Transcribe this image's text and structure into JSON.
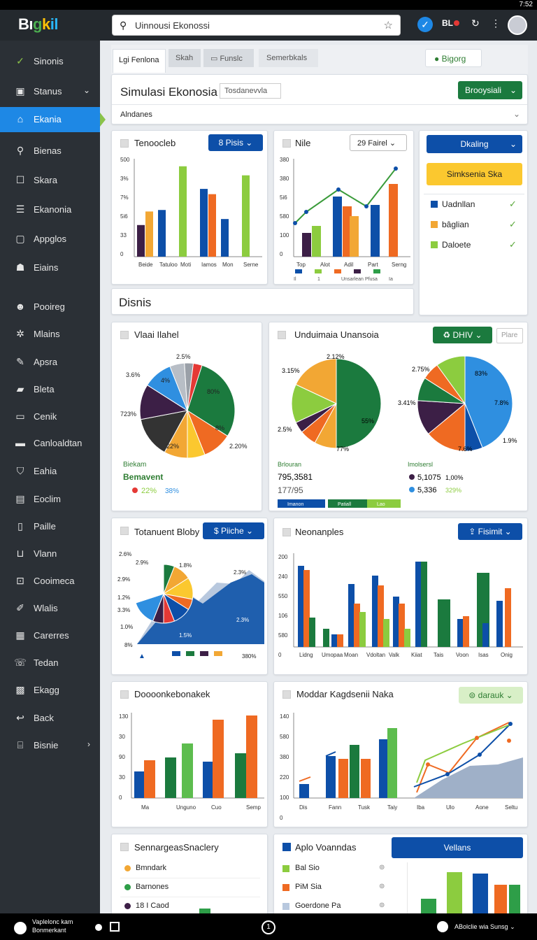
{
  "statusbar": {
    "time": "7:52"
  },
  "app": {
    "logo_parts": [
      "Bı",
      "g",
      "k",
      "il"
    ]
  },
  "search": {
    "value": "Uinnousi Ekonossi"
  },
  "topbar": {
    "badge": "BL"
  },
  "sidebar": {
    "items": [
      {
        "label": "Sinonis",
        "icon": "check-icon"
      },
      {
        "label": "Stanus",
        "icon": "box-icon",
        "chev": "⌄"
      },
      {
        "label": "Ekania",
        "icon": "home-icon"
      },
      {
        "label": "Bienas",
        "icon": "search-icon"
      },
      {
        "label": "Skara",
        "icon": "square-icon"
      },
      {
        "label": "Ekanonia",
        "icon": "list-icon"
      },
      {
        "label": "Appglos",
        "icon": "app-icon"
      },
      {
        "label": "Eiains",
        "icon": "users-icon"
      },
      {
        "label": "Pooireg",
        "icon": "user-icon"
      },
      {
        "label": "Mlains",
        "icon": "gear-icon"
      },
      {
        "label": "Apsra",
        "icon": "pen-icon"
      },
      {
        "label": "Bleta",
        "icon": "folder-icon"
      },
      {
        "label": "Cenik",
        "icon": "monitor-icon"
      },
      {
        "label": "Canloaldtan",
        "icon": "card-icon"
      },
      {
        "label": "Eahia",
        "icon": "shield-icon"
      },
      {
        "label": "Eoclim",
        "icon": "doc-icon"
      },
      {
        "label": "Paille",
        "icon": "page-icon"
      },
      {
        "label": "Vlann",
        "icon": "inbox-icon"
      },
      {
        "label": "Cooimeca",
        "icon": "share-icon"
      },
      {
        "label": "Wlalis",
        "icon": "wrench-icon"
      },
      {
        "label": "Carerres",
        "icon": "table-icon"
      },
      {
        "label": "Tedan",
        "icon": "phone-icon"
      },
      {
        "label": "Ekagg",
        "icon": "save-icon"
      },
      {
        "label": "Back",
        "icon": "back-icon"
      },
      {
        "label": "Bisnie",
        "icon": "briefcase-icon",
        "chev": "›"
      }
    ]
  },
  "tabs": [
    "Lgi Fenlona",
    "Skah",
    "Funslc",
    "Semerbkals"
  ],
  "top_chip": "Bigorg",
  "header": {
    "title": "Simulasi Ekonosia",
    "input_value": "Tosdanevvla",
    "dropdown": "Alndanes",
    "green_button": "Brooysiali"
  },
  "section_title": "Disnis",
  "charts": [
    {
      "title": "Tenoocleb",
      "button": "8 Pisis",
      "type": "bar",
      "chart_data": {
        "type": "bar",
        "categories": [
          "Beide",
          "Tatuloo",
          "Moti",
          "Iamos",
          "Mon",
          "Serne"
        ],
        "ylabels": [
          "500",
          "3%",
          "7%",
          "5i6",
          "33",
          "0"
        ],
        "series": [
          {
            "color": "#3c1f46",
            "values": [
              42,
              0,
              0,
              0,
              0,
              0
            ]
          },
          {
            "color": "#f2a734",
            "values": [
              60,
              0,
              0,
              0,
              0,
              0
            ]
          },
          {
            "color": "#0d4fa8",
            "values": [
              0,
              62,
              0,
              90,
              50,
              0
            ]
          },
          {
            "color": "#8ccc3f",
            "values": [
              0,
              0,
              120,
              0,
              0,
              108
            ]
          },
          {
            "color": "#ef6a22",
            "values": [
              0,
              0,
              0,
              83,
              0,
              0
            ]
          }
        ]
      }
    },
    {
      "title": "Nile",
      "button": "29 Fairel",
      "type": "barline",
      "chart_data": {
        "type": "bar",
        "categories": [
          "Top",
          "Alot",
          "Adil",
          "Part",
          "Serng"
        ],
        "ylabels": [
          "380",
          "380",
          "5i6",
          "580",
          "100",
          "0"
        ],
        "bars": [
          [
            28,
            0,
            0
          ],
          [
            34,
            0,
            0
          ],
          [
            70,
            44,
            0
          ],
          [
            0,
            0,
            62
          ],
          [
            0,
            0,
            88
          ]
        ],
        "line": [
          30,
          55,
          88,
          62,
          120
        ],
        "legend": [
          "Il",
          "1",
          "Unsarlean",
          "Pfusa",
          "Ia"
        ]
      }
    },
    {
      "title": "Vlaai Ilahel",
      "type": "pie",
      "labels": [
        "2.5%",
        "3.6%",
        "723%",
        "22%",
        "2.20%",
        "80%",
        "8%",
        "4%"
      ],
      "legend": [
        "Biekam",
        "Bemavent",
        "22%",
        "38%"
      ]
    },
    {
      "title": "Unduimaia Unansoia",
      "button": "DHIV",
      "ghost": "Plare",
      "type": "pie2",
      "labels_a": [
        "2.12%",
        "3.15%",
        "2.5%",
        "55%",
        "77%"
      ],
      "labels_b": [
        "2.75%",
        "3.41%",
        "83%",
        "7.8%",
        "1.9%",
        "7.6%"
      ],
      "stats": [
        "Brlouran",
        "795,3581",
        "177/95",
        "Imolsersl",
        "5,1075",
        "1,00%",
        "5,336",
        "329%"
      ],
      "legend": [
        "Imanon",
        "Patiall",
        "Lao"
      ]
    },
    {
      "title": "Totanuent Bloby",
      "button": "Piiche",
      "type": "area",
      "labels": [
        "2.6%",
        "2.9%",
        "2.9%",
        "1.2%",
        "3.3%",
        "1.0%",
        "8%",
        "1.8%",
        "2.3%",
        "2.3%",
        "1.5%",
        "380%"
      ]
    },
    {
      "title": "Neonanples",
      "button": "Fisimit",
      "type": "bar2",
      "chart_data": {
        "type": "bar",
        "categories": [
          "Lidng",
          "Umopaa",
          "Moan",
          "Vdoltan",
          "Valk",
          "Kiiat",
          "Tais",
          "Voon",
          "Isas",
          "Onig"
        ],
        "ylabels": [
          "200",
          "240",
          "550",
          "106",
          "580",
          "0"
        ]
      }
    },
    {
      "title": "Doooonkebonakek",
      "type": "bar3",
      "chart_data": {
        "type": "bar",
        "categories": [
          "Ma",
          "Unguno",
          "Cuo",
          "Semp"
        ],
        "ylabels": [
          "130",
          "30",
          "90",
          "30",
          "0"
        ]
      }
    },
    {
      "title": "Moddar Kagdsenii Naka",
      "button": "darauk",
      "type": "combo",
      "chart_data": {
        "type": "bar",
        "categories": [
          "Dis",
          "Fann",
          "Tusk",
          "Taiy",
          "Iba",
          "Ulo",
          "Aone",
          "Seltu"
        ],
        "ylabels": [
          "140",
          "580",
          "380",
          "220",
          "100",
          "0"
        ]
      }
    }
  ],
  "right_panel": {
    "blue_button": "Dkaling",
    "yellow_button": "Simksenia Ska",
    "items": [
      "Uadnllan",
      "bâglian",
      "Daloete"
    ]
  },
  "bottom_left": {
    "title": "SennargeasSnaclery",
    "items": [
      "Bmndark",
      "Barnones",
      "18 I Caod"
    ]
  },
  "bottom_right": {
    "title": "Aplo Voanndas",
    "button": "Vellans",
    "items": [
      "Bal Sio",
      "PiM Sia",
      "Goerdone Pa"
    ]
  },
  "navbar": {
    "left1": "Vaplelonc kam",
    "left2": "Bonmerkant",
    "right": "ABolclie wia Sunsg"
  }
}
